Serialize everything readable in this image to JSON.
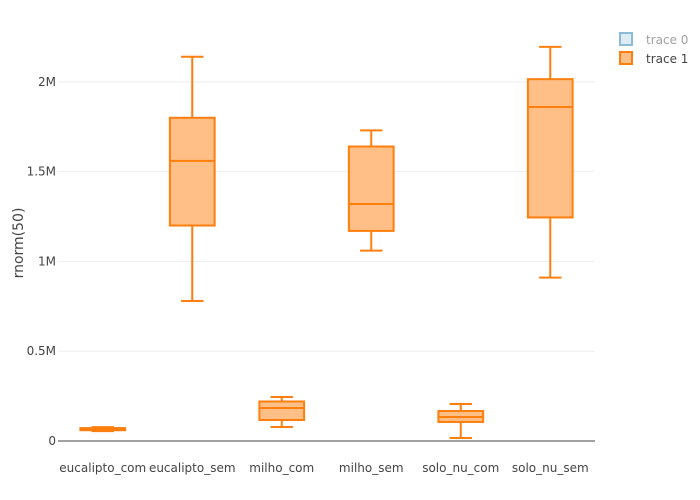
{
  "chart_data": {
    "type": "box",
    "title": "",
    "xlabel": "",
    "ylabel": "rnorm(50)",
    "ylim": [
      0,
      2300000
    ],
    "yticks": [
      0,
      500000,
      1000000,
      1500000,
      2000000
    ],
    "ytick_labels": [
      "0",
      "0.5M",
      "1M",
      "1.5M",
      "2M"
    ],
    "grid": true,
    "categories": [
      "eucalipto_com",
      "eucalipto_sem",
      "milho_com",
      "milho_sem",
      "solo_nu_com",
      "solo_nu_sem"
    ],
    "series": [
      {
        "name": "trace 0",
        "visible": "legendonly",
        "color": "#1f77b4",
        "boxes": []
      },
      {
        "name": "trace 1",
        "visible": true,
        "color": "#ff7f0e",
        "fill": "#ffbf86",
        "boxes": [
          {
            "min": 55000,
            "q1": 60000,
            "median": 65000,
            "q3": 72000,
            "max": 77000
          },
          {
            "min": 780000,
            "q1": 1200000,
            "median": 1560000,
            "q3": 1800000,
            "max": 2140000
          },
          {
            "min": 78000,
            "q1": 117000,
            "median": 184000,
            "q3": 220000,
            "max": 245000
          },
          {
            "min": 1060000,
            "q1": 1170000,
            "median": 1320000,
            "q3": 1640000,
            "max": 1730000
          },
          {
            "min": 17000,
            "q1": 106000,
            "median": 134000,
            "q3": 167000,
            "max": 206000
          },
          {
            "min": 910000,
            "q1": 1245000,
            "median": 1860000,
            "q3": 2015000,
            "max": 2195000
          }
        ]
      }
    ],
    "legend": {
      "placement": "top-right",
      "entries": [
        "trace 0",
        "trace 1"
      ]
    }
  }
}
